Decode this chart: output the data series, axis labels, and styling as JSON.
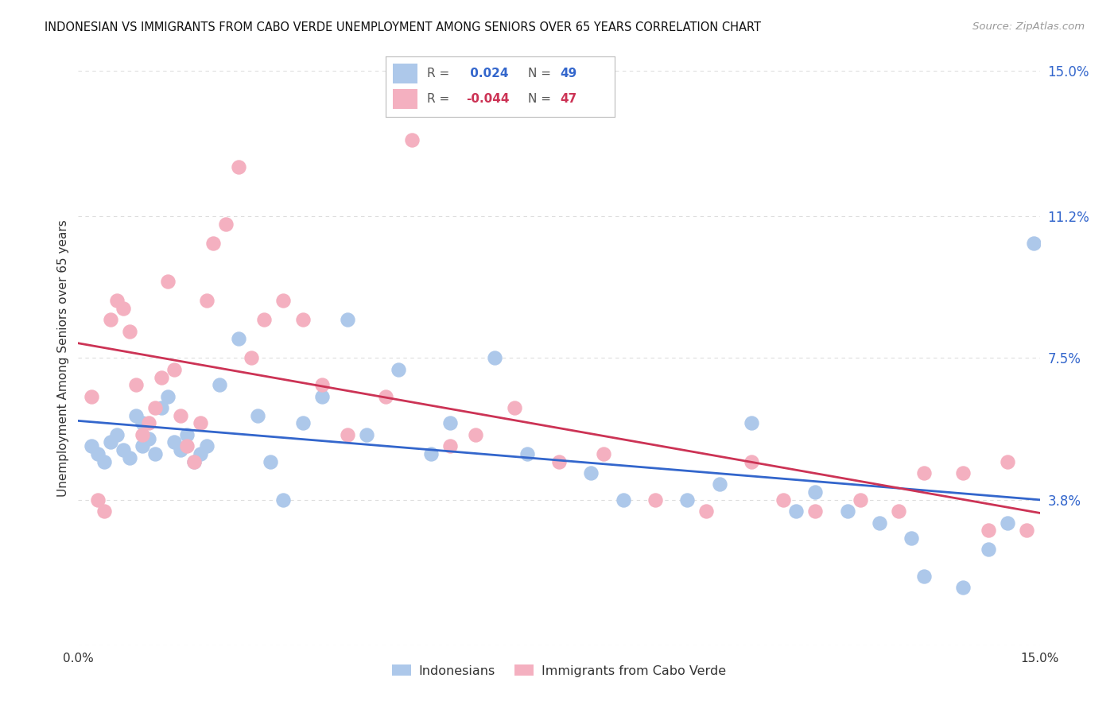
{
  "title": "INDONESIAN VS IMMIGRANTS FROM CABO VERDE UNEMPLOYMENT AMONG SENIORS OVER 65 YEARS CORRELATION CHART",
  "source": "Source: ZipAtlas.com",
  "ylabel": "Unemployment Among Seniors over 65 years",
  "xlim": [
    0,
    15
  ],
  "ylim": [
    0,
    15
  ],
  "yticks": [
    0,
    3.8,
    7.5,
    11.2,
    15.0
  ],
  "ytick_labels": [
    "",
    "3.8%",
    "7.5%",
    "11.2%",
    "15.0%"
  ],
  "legend_blue_r": " 0.024",
  "legend_blue_n": "49",
  "legend_pink_r": "-0.044",
  "legend_pink_n": "47",
  "blue_color": "#adc8ea",
  "pink_color": "#f4b0c0",
  "blue_edge_color": "#adc8ea",
  "pink_edge_color": "#f4b0c0",
  "blue_line_color": "#3366cc",
  "pink_line_color": "#cc3355",
  "text_color": "#333333",
  "grid_color": "#dddddd",
  "background_color": "#ffffff",
  "blue_points_x": [
    0.2,
    0.3,
    0.4,
    0.5,
    0.6,
    0.7,
    0.8,
    0.9,
    1.0,
    1.0,
    1.1,
    1.2,
    1.3,
    1.4,
    1.5,
    1.6,
    1.7,
    1.8,
    1.9,
    2.0,
    2.2,
    2.5,
    2.8,
    3.0,
    3.2,
    3.5,
    3.8,
    4.2,
    4.5,
    5.0,
    5.5,
    5.8,
    6.5,
    7.0,
    8.0,
    8.5,
    9.5,
    10.0,
    10.5,
    11.2,
    11.5,
    12.0,
    12.5,
    13.0,
    13.2,
    13.8,
    14.2,
    14.5,
    14.9
  ],
  "blue_points_y": [
    5.2,
    5.0,
    4.8,
    5.3,
    5.5,
    5.1,
    4.9,
    6.0,
    5.8,
    5.2,
    5.4,
    5.0,
    6.2,
    6.5,
    5.3,
    5.1,
    5.5,
    4.8,
    5.0,
    5.2,
    6.8,
    8.0,
    6.0,
    4.8,
    3.8,
    5.8,
    6.5,
    8.5,
    5.5,
    7.2,
    5.0,
    5.8,
    7.5,
    5.0,
    4.5,
    3.8,
    3.8,
    4.2,
    5.8,
    3.5,
    4.0,
    3.5,
    3.2,
    2.8,
    1.8,
    1.5,
    2.5,
    3.2,
    10.5
  ],
  "pink_points_x": [
    0.2,
    0.3,
    0.4,
    0.5,
    0.6,
    0.7,
    0.8,
    0.9,
    1.0,
    1.1,
    1.2,
    1.3,
    1.4,
    1.5,
    1.6,
    1.7,
    1.8,
    1.9,
    2.0,
    2.1,
    2.3,
    2.5,
    2.7,
    2.9,
    3.2,
    3.5,
    3.8,
    4.2,
    4.8,
    5.2,
    5.8,
    6.2,
    6.8,
    7.5,
    8.2,
    9.0,
    9.8,
    10.5,
    11.0,
    11.5,
    12.2,
    12.8,
    13.2,
    13.8,
    14.2,
    14.5,
    14.8
  ],
  "pink_points_y": [
    6.5,
    3.8,
    3.5,
    8.5,
    9.0,
    8.8,
    8.2,
    6.8,
    5.5,
    5.8,
    6.2,
    7.0,
    9.5,
    7.2,
    6.0,
    5.2,
    4.8,
    5.8,
    9.0,
    10.5,
    11.0,
    12.5,
    7.5,
    8.5,
    9.0,
    8.5,
    6.8,
    5.5,
    6.5,
    13.2,
    5.2,
    5.5,
    6.2,
    4.8,
    5.0,
    3.8,
    3.5,
    4.8,
    3.8,
    3.5,
    3.8,
    3.5,
    4.5,
    4.5,
    3.0,
    4.8,
    3.0
  ]
}
